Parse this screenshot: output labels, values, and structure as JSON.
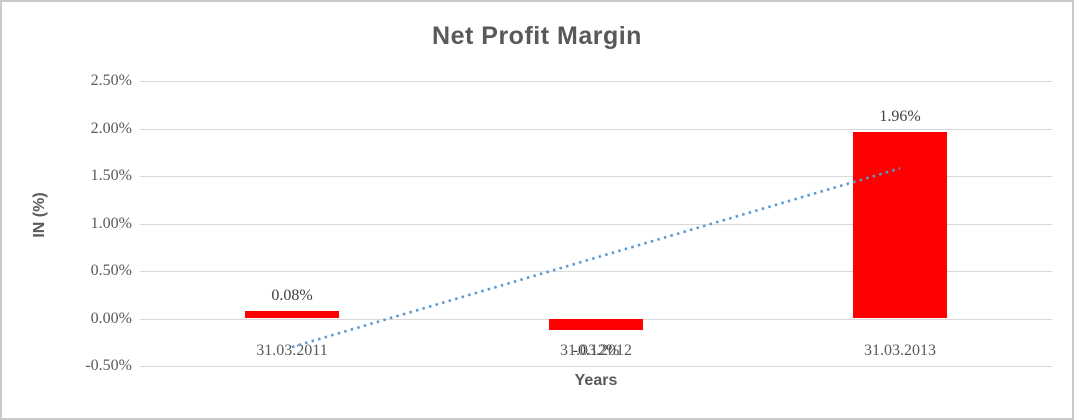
{
  "chart_data": {
    "type": "bar",
    "title": "Net Profit Margin",
    "xlabel": "Years",
    "ylabel": "IN (%)",
    "categories": [
      "31.03.2011",
      "31.03.2012",
      "31.03.2013"
    ],
    "values": [
      0.08,
      -0.12,
      1.96
    ],
    "data_labels": [
      "0.08%",
      "-0.12%",
      "1.96%"
    ],
    "ytick_labels": [
      "2.50%",
      "2.00%",
      "1.50%",
      "1.00%",
      "0.50%",
      "0.00%",
      "-0.50%"
    ],
    "ylim": [
      -0.5,
      2.5
    ],
    "grid": true,
    "legend": false,
    "bar_color": "#FF0000",
    "trendline": {
      "type": "linear",
      "style": "dotted",
      "color": "#5B9BD5",
      "start_value": -0.3,
      "end_value": 1.58
    },
    "colors": {
      "title": "#595959",
      "axis_titles": "#595959",
      "tick_labels": "#595959",
      "data_labels": "#404040",
      "gridline": "#D9D9D9"
    }
  }
}
